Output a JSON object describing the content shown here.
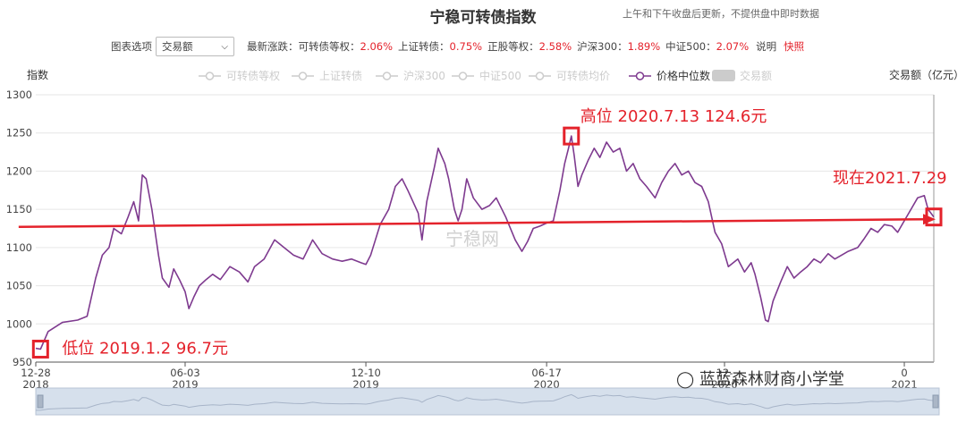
{
  "header": {
    "title": "宁稳可转债指数",
    "subnote": "上午和下午收盘后更新，不提供盘中即时数据"
  },
  "toolbar": {
    "options_label": "图表选项",
    "selected": "交易额",
    "latest_label": "最新涨跌：",
    "items": [
      {
        "label": "可转债等权：",
        "value": "2.06%"
      },
      {
        "label": "上证转债：",
        "value": "0.75%"
      },
      {
        "label": "正股等权：",
        "value": "2.58%"
      },
      {
        "label": "沪深300：",
        "value": "1.89%"
      },
      {
        "label": "中证500：",
        "value": "2.07%"
      }
    ],
    "desc": "说明",
    "snapshot": "快照"
  },
  "colors": {
    "line": "#7e3a8f",
    "annotation": "#e4222b",
    "grid": "#e6e6e6",
    "legend_inactive": "#cccccc"
  },
  "watermark": {
    "center": "宁稳网",
    "wechat": "蓝蓝森林财商小学堂"
  },
  "chart_data": {
    "type": "line",
    "title": "",
    "ylabel_left": "指数",
    "ylabel_right": "交易额（亿元）",
    "ylim": [
      950,
      1300
    ],
    "yticks": [
      950,
      1000,
      1050,
      1100,
      1150,
      1200,
      1250,
      1300
    ],
    "x_range": [
      "2018-12-28",
      "2021-07-29"
    ],
    "xticks": [
      {
        "date": "2018-12-28",
        "line1": "12-28",
        "line2": "2018"
      },
      {
        "date": "2019-06-03",
        "line1": "06-03",
        "line2": "2019"
      },
      {
        "date": "2019-12-10",
        "line1": "12-10",
        "line2": "2019"
      },
      {
        "date": "2020-06-17",
        "line1": "06-17",
        "line2": "2020"
      },
      {
        "date": "2020-12-21",
        "line1": "12-",
        "line2": "2020"
      },
      {
        "date": "2021-06-28",
        "line1": "0",
        "line2": "2021"
      }
    ],
    "legend": [
      {
        "name": "可转债等权",
        "active": false
      },
      {
        "name": "上证转债",
        "active": false
      },
      {
        "name": "沪深300",
        "active": false
      },
      {
        "name": "中证500",
        "active": false
      },
      {
        "name": "可转债均价",
        "active": false
      },
      {
        "name": "价格中位数",
        "active": true
      },
      {
        "name": "交易额",
        "active": false,
        "style": "box"
      }
    ],
    "series": [
      {
        "name": "价格中位数",
        "points": [
          [
            "2018-12-28",
            968
          ],
          [
            "2019-01-02",
            967
          ],
          [
            "2019-01-10",
            990
          ],
          [
            "2019-01-25",
            1002
          ],
          [
            "2019-02-10",
            1005
          ],
          [
            "2019-02-20",
            1010
          ],
          [
            "2019-03-01",
            1060
          ],
          [
            "2019-03-08",
            1090
          ],
          [
            "2019-03-15",
            1100
          ],
          [
            "2019-03-20",
            1125
          ],
          [
            "2019-03-28",
            1118
          ],
          [
            "2019-04-04",
            1140
          ],
          [
            "2019-04-10",
            1160
          ],
          [
            "2019-04-15",
            1135
          ],
          [
            "2019-04-19",
            1195
          ],
          [
            "2019-04-23",
            1190
          ],
          [
            "2019-04-29",
            1150
          ],
          [
            "2019-05-06",
            1090
          ],
          [
            "2019-05-10",
            1060
          ],
          [
            "2019-05-17",
            1048
          ],
          [
            "2019-05-22",
            1072
          ],
          [
            "2019-05-28",
            1058
          ],
          [
            "2019-06-03",
            1042
          ],
          [
            "2019-06-07",
            1020
          ],
          [
            "2019-06-12",
            1035
          ],
          [
            "2019-06-18",
            1050
          ],
          [
            "2019-06-25",
            1058
          ],
          [
            "2019-07-02",
            1065
          ],
          [
            "2019-07-10",
            1058
          ],
          [
            "2019-07-20",
            1075
          ],
          [
            "2019-07-30",
            1068
          ],
          [
            "2019-08-08",
            1055
          ],
          [
            "2019-08-15",
            1075
          ],
          [
            "2019-08-25",
            1085
          ],
          [
            "2019-09-05",
            1110
          ],
          [
            "2019-09-15",
            1100
          ],
          [
            "2019-09-25",
            1090
          ],
          [
            "2019-10-05",
            1085
          ],
          [
            "2019-10-15",
            1110
          ],
          [
            "2019-10-25",
            1092
          ],
          [
            "2019-11-05",
            1085
          ],
          [
            "2019-11-15",
            1082
          ],
          [
            "2019-11-25",
            1085
          ],
          [
            "2019-12-05",
            1080
          ],
          [
            "2019-12-10",
            1078
          ],
          [
            "2019-12-15",
            1090
          ],
          [
            "2019-12-20",
            1110
          ],
          [
            "2019-12-25",
            1130
          ],
          [
            "2020-01-03",
            1150
          ],
          [
            "2020-01-10",
            1180
          ],
          [
            "2020-01-17",
            1190
          ],
          [
            "2020-01-23",
            1175
          ],
          [
            "2020-02-03",
            1145
          ],
          [
            "2020-02-07",
            1110
          ],
          [
            "2020-02-12",
            1160
          ],
          [
            "2020-02-20",
            1205
          ],
          [
            "2020-02-24",
            1230
          ],
          [
            "2020-03-02",
            1210
          ],
          [
            "2020-03-06",
            1190
          ],
          [
            "2020-03-12",
            1150
          ],
          [
            "2020-03-16",
            1135
          ],
          [
            "2020-03-20",
            1150
          ],
          [
            "2020-03-25",
            1190
          ],
          [
            "2020-04-01",
            1165
          ],
          [
            "2020-04-10",
            1150
          ],
          [
            "2020-04-18",
            1155
          ],
          [
            "2020-04-25",
            1165
          ],
          [
            "2020-05-05",
            1140
          ],
          [
            "2020-05-15",
            1110
          ],
          [
            "2020-05-22",
            1095
          ],
          [
            "2020-05-28",
            1108
          ],
          [
            "2020-06-03",
            1125
          ],
          [
            "2020-06-10",
            1128
          ],
          [
            "2020-06-17",
            1132
          ],
          [
            "2020-06-24",
            1135
          ],
          [
            "2020-07-01",
            1175
          ],
          [
            "2020-07-06",
            1210
          ],
          [
            "2020-07-10",
            1230
          ],
          [
            "2020-07-13",
            1246
          ],
          [
            "2020-07-16",
            1220
          ],
          [
            "2020-07-20",
            1180
          ],
          [
            "2020-07-24",
            1195
          ],
          [
            "2020-07-31",
            1215
          ],
          [
            "2020-08-06",
            1230
          ],
          [
            "2020-08-12",
            1218
          ],
          [
            "2020-08-19",
            1238
          ],
          [
            "2020-08-26",
            1225
          ],
          [
            "2020-09-02",
            1230
          ],
          [
            "2020-09-09",
            1200
          ],
          [
            "2020-09-16",
            1210
          ],
          [
            "2020-09-23",
            1190
          ],
          [
            "2020-09-30",
            1180
          ],
          [
            "2020-10-09",
            1165
          ],
          [
            "2020-10-16",
            1185
          ],
          [
            "2020-10-23",
            1200
          ],
          [
            "2020-10-30",
            1210
          ],
          [
            "2020-11-06",
            1195
          ],
          [
            "2020-11-13",
            1200
          ],
          [
            "2020-11-20",
            1185
          ],
          [
            "2020-11-27",
            1180
          ],
          [
            "2020-12-04",
            1160
          ],
          [
            "2020-12-11",
            1120
          ],
          [
            "2020-12-18",
            1105
          ],
          [
            "2020-12-25",
            1075
          ],
          [
            "2021-01-04",
            1085
          ],
          [
            "2021-01-11",
            1068
          ],
          [
            "2021-01-18",
            1080
          ],
          [
            "2021-01-22",
            1065
          ],
          [
            "2021-01-28",
            1035
          ],
          [
            "2021-02-02",
            1005
          ],
          [
            "2021-02-05",
            1003
          ],
          [
            "2021-02-10",
            1030
          ],
          [
            "2021-02-18",
            1055
          ],
          [
            "2021-02-25",
            1075
          ],
          [
            "2021-03-04",
            1060
          ],
          [
            "2021-03-11",
            1068
          ],
          [
            "2021-03-18",
            1075
          ],
          [
            "2021-03-25",
            1085
          ],
          [
            "2021-04-01",
            1080
          ],
          [
            "2021-04-09",
            1092
          ],
          [
            "2021-04-16",
            1085
          ],
          [
            "2021-04-23",
            1090
          ],
          [
            "2021-04-30",
            1095
          ],
          [
            "2021-05-10",
            1100
          ],
          [
            "2021-05-17",
            1112
          ],
          [
            "2021-05-24",
            1125
          ],
          [
            "2021-05-31",
            1120
          ],
          [
            "2021-06-07",
            1130
          ],
          [
            "2021-06-15",
            1128
          ],
          [
            "2021-06-21",
            1120
          ],
          [
            "2021-06-28",
            1135
          ],
          [
            "2021-07-05",
            1150
          ],
          [
            "2021-07-12",
            1165
          ],
          [
            "2021-07-19",
            1168
          ],
          [
            "2021-07-23",
            1150
          ],
          [
            "2021-07-29",
            1140
          ]
        ]
      }
    ],
    "annotations": {
      "low": {
        "text": "低位 2019.1.2 96.7元",
        "date": "2019-01-02",
        "value": 967
      },
      "high": {
        "text": "高位 2020.7.13 124.6元",
        "date": "2020-07-13",
        "value": 1246
      },
      "now": {
        "text": "现在2021.7.29",
        "date": "2021-07-29",
        "value": 1140
      },
      "arrow": {
        "from": [
          "2018-12-10",
          1127
        ],
        "to": [
          "2021-07-29",
          1137
        ]
      }
    }
  }
}
